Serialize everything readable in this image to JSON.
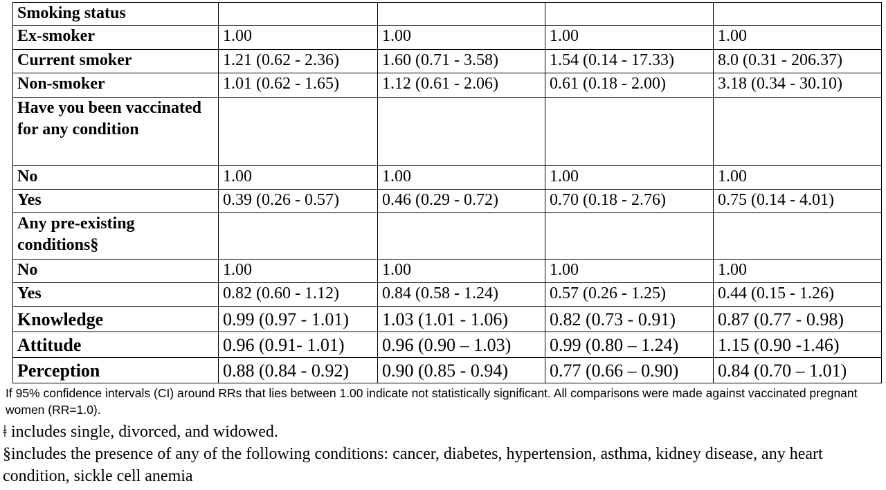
{
  "table": {
    "rows": [
      [
        "Smoking status"
      ],
      [
        "Ex-smoker",
        "1.00",
        "1.00",
        "1.00",
        "1.00"
      ],
      [
        "Current smoker",
        "1.21 (0.62 - 2.36)",
        "1.60 (0.71 - 3.58)",
        "1.54 (0.14 - 17.33)",
        "8.0 (0.31 - 206.37)"
      ],
      [
        "Non-smoker",
        "1.01 (0.62 - 1.65)",
        "1.12 (0.61 - 2.06)",
        "0.61 (0.18 - 2.00)",
        "3.18 (0.34 - 30.10)"
      ],
      [
        "Have you been vaccinated for any condition"
      ],
      [
        "No",
        "1.00",
        "1.00",
        "1.00",
        "1.00"
      ],
      [
        "Yes",
        "0.39 (0.26 - 0.57)",
        "0.46 (0.29 - 0.72)",
        "0.70 (0.18 - 2.76)",
        "0.75 (0.14 - 4.01)"
      ],
      [
        "Any pre-existing conditions§"
      ],
      [
        "No",
        "1.00",
        "1.00",
        "1.00",
        "1.00"
      ],
      [
        "Yes",
        "0.82 (0.60 - 1.12)",
        "0.84 (0.58 - 1.24)",
        "0.57 (0.26 - 1.25)",
        "0.44 (0.15 - 1.26)"
      ],
      [
        "Knowledge",
        "0.99 (0.97 - 1.01)",
        "1.03 (1.01 - 1.06)",
        "0.82 (0.73 - 0.91)",
        "0.87 (0.77 - 0.98)"
      ],
      [
        "Attitude",
        "0.96 (0.91- 1.01)",
        "0.96 (0.90 – 1.03)",
        "0.99 (0.80 – 1.24)",
        "1.15 (0.90 -1.46)"
      ],
      [
        "Perception",
        "0.88 (0.84 - 0.92)",
        "0.90 (0.85 - 0.94)",
        "0.77 (0.66 – 0.90)",
        "0.84 (0.70 – 1.01)"
      ]
    ]
  },
  "footnotes": [
    "If 95% confidence intervals (CI) around RRs that lies between 1.00 indicate not statistically significant.  All comparisons were made against vaccinated pregnant women (RR=1.0).",
    "ǂ includes single, divorced, and widowed.",
    "§includes the presence of any of the following conditions: cancer, diabetes, hypertension, asthma, kidney disease, any heart condition, sickle cell anemia"
  ]
}
